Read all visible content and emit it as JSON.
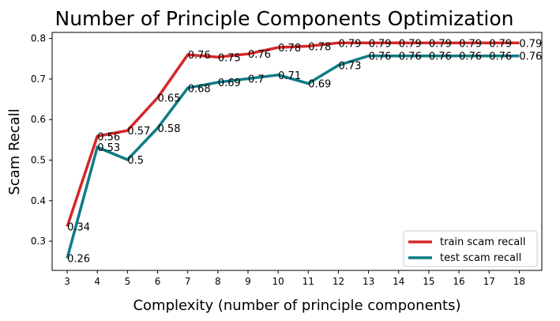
{
  "chart_data": {
    "type": "line",
    "title": "Number of Principle Components Optimization",
    "xlabel": "Complexity (number of principle components)",
    "ylabel": "Scam Recall",
    "x": [
      3,
      4,
      5,
      6,
      7,
      8,
      9,
      10,
      11,
      12,
      13,
      14,
      15,
      16,
      17,
      18
    ],
    "xlim": [
      2.5,
      18.75
    ],
    "ylim": [
      0.228,
      0.815
    ],
    "yticks": [
      0.3,
      0.4,
      0.5,
      0.6,
      0.7,
      0.8
    ],
    "grid": false,
    "legend": "lower right",
    "series": [
      {
        "name": "train scam recall",
        "color": "#d62728",
        "values": [
          0.336,
          0.559,
          0.573,
          0.654,
          0.76,
          0.754,
          0.762,
          0.778,
          0.781,
          0.789,
          0.789,
          0.789,
          0.789,
          0.789,
          0.789,
          0.789
        ],
        "labels": [
          "0.34",
          "0.56",
          "0.57",
          "0.65",
          "0.76",
          "0.75",
          "0.76",
          "0.78",
          "0.78",
          "0.79",
          "0.79",
          "0.79",
          "0.79",
          "0.79",
          "0.79",
          "0.79"
        ]
      },
      {
        "name": "test scam recall",
        "color": "#0e7c86",
        "values": [
          0.258,
          0.532,
          0.501,
          0.579,
          0.678,
          0.692,
          0.701,
          0.71,
          0.689,
          0.734,
          0.757,
          0.757,
          0.757,
          0.757,
          0.757,
          0.757
        ],
        "labels": [
          "0.26",
          "0.53",
          "0.5",
          "0.58",
          "0.68",
          "0.69",
          "0.7",
          "0.71",
          "0.69",
          "0.73",
          "0.76",
          "0.76",
          "0.76",
          "0.76",
          "0.76",
          "0.76"
        ]
      }
    ]
  }
}
